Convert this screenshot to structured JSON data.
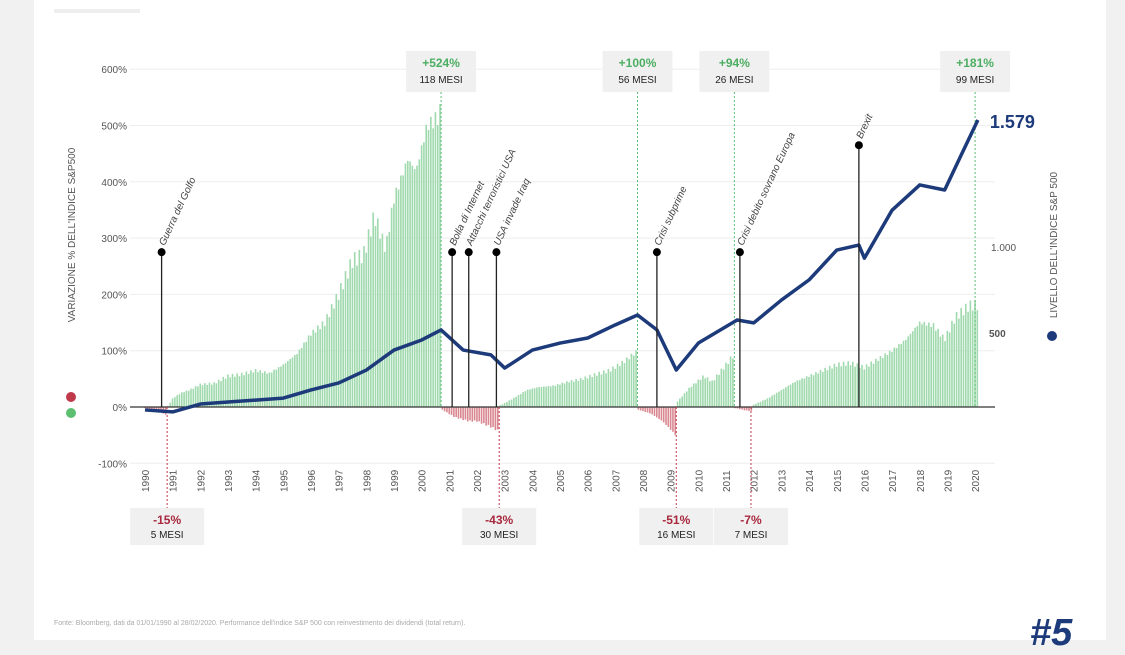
{
  "chart_data": {
    "type": "bar+line",
    "left_axis": {
      "title": "VARIAZIONE % DELL'INDICE S&P500",
      "ticks": [
        600,
        500,
        400,
        300,
        200,
        100,
        0,
        -100
      ],
      "tick_labels": [
        "600%",
        "500%",
        "400%",
        "300%",
        "200%",
        "100%",
        "0%",
        "-100%"
      ],
      "range": [
        -100,
        600
      ]
    },
    "right_axis": {
      "title": "LIVELLO DELL'INDICE S&P 500",
      "ticks": [
        500,
        1000
      ],
      "tick_labels": [
        "500",
        "1.000"
      ]
    },
    "x_axis": {
      "range": [
        1990,
        2020
      ],
      "tick_labels": [
        "1990",
        "1991",
        "1992",
        "1993",
        "1994",
        "1995",
        "1996",
        "1997",
        "1998",
        "1999",
        "2000",
        "2001",
        "2002",
        "2003",
        "2004",
        "2005",
        "2006",
        "2007",
        "2008",
        "2009",
        "2010",
        "2011",
        "2012",
        "2013",
        "2014",
        "2015",
        "2016",
        "2017",
        "2018",
        "2019",
        "2020"
      ]
    },
    "grid": true,
    "colors": {
      "bull": "#5cbf72",
      "bear": "#c0394b",
      "index_line": "#1d3a7a"
    },
    "bars": [
      [
        1990.0,
        -2
      ],
      [
        1990.4,
        -5
      ],
      [
        1990.8,
        -15
      ],
      [
        1990.85,
        2
      ],
      [
        1991.0,
        15
      ],
      [
        1991.3,
        25
      ],
      [
        1991.6,
        30
      ],
      [
        1992.0,
        40
      ],
      [
        1992.5,
        42
      ],
      [
        1993.0,
        55
      ],
      [
        1993.5,
        58
      ],
      [
        1994.0,
        65
      ],
      [
        1994.5,
        60
      ],
      [
        1995.0,
        75
      ],
      [
        1995.5,
        95
      ],
      [
        1996.0,
        130
      ],
      [
        1996.5,
        150
      ],
      [
        1997.0,
        200
      ],
      [
        1997.5,
        260
      ],
      [
        1997.9,
        270
      ],
      [
        1998.3,
        340
      ],
      [
        1998.7,
        280
      ],
      [
        1999.0,
        370
      ],
      [
        1999.5,
        440
      ],
      [
        1999.8,
        420
      ],
      [
        2000.2,
        500
      ],
      [
        2000.5,
        510
      ],
      [
        2000.7,
        524
      ],
      [
        2000.75,
        -5
      ],
      [
        2001.2,
        -18
      ],
      [
        2001.7,
        -25
      ],
      [
        2002.0,
        -25
      ],
      [
        2002.5,
        -35
      ],
      [
        2002.8,
        -43
      ],
      [
        2002.85,
        3
      ],
      [
        2003.3,
        15
      ],
      [
        2003.8,
        30
      ],
      [
        2004.2,
        35
      ],
      [
        2004.8,
        38
      ],
      [
        2005.3,
        45
      ],
      [
        2005.8,
        50
      ],
      [
        2006.3,
        58
      ],
      [
        2006.8,
        65
      ],
      [
        2007.3,
        80
      ],
      [
        2007.8,
        100
      ],
      [
        2007.85,
        -5
      ],
      [
        2008.3,
        -12
      ],
      [
        2008.7,
        -25
      ],
      [
        2009.0,
        -40
      ],
      [
        2009.2,
        -51
      ],
      [
        2009.25,
        10
      ],
      [
        2009.7,
        35
      ],
      [
        2010.2,
        55
      ],
      [
        2010.5,
        45
      ],
      [
        2011.0,
        75
      ],
      [
        2011.3,
        94
      ],
      [
        2011.35,
        -2
      ],
      [
        2011.7,
        -6
      ],
      [
        2011.9,
        -7
      ],
      [
        2011.95,
        3
      ],
      [
        2012.5,
        15
      ],
      [
        2013.0,
        30
      ],
      [
        2013.5,
        45
      ],
      [
        2014.0,
        55
      ],
      [
        2014.5,
        65
      ],
      [
        2015.0,
        75
      ],
      [
        2015.5,
        78
      ],
      [
        2016.0,
        70
      ],
      [
        2016.5,
        85
      ],
      [
        2017.0,
        100
      ],
      [
        2017.5,
        120
      ],
      [
        2018.0,
        150
      ],
      [
        2018.5,
        145
      ],
      [
        2018.9,
        120
      ],
      [
        2019.3,
        160
      ],
      [
        2019.8,
        180
      ],
      [
        2020.1,
        181
      ]
    ],
    "index_line": [
      [
        1990.0,
        257
      ],
      [
        1991.0,
        248
      ],
      [
        1992.0,
        284
      ],
      [
        1993.0,
        293
      ],
      [
        1994.0,
        302
      ],
      [
        1995.0,
        311
      ],
      [
        1996.0,
        348
      ],
      [
        1997.0,
        380
      ],
      [
        1998.0,
        439
      ],
      [
        1999.0,
        530
      ],
      [
        2000.0,
        576
      ],
      [
        2000.7,
        622
      ],
      [
        2001.5,
        530
      ],
      [
        2002.5,
        508
      ],
      [
        2003.0,
        448
      ],
      [
        2004.0,
        530
      ],
      [
        2005.0,
        562
      ],
      [
        2006.0,
        585
      ],
      [
        2007.0,
        645
      ],
      [
        2007.8,
        690
      ],
      [
        2008.5,
        622
      ],
      [
        2009.2,
        439
      ],
      [
        2010.0,
        562
      ],
      [
        2011.4,
        667
      ],
      [
        2012.0,
        654
      ],
      [
        2013.0,
        758
      ],
      [
        2014.0,
        850
      ],
      [
        2015.0,
        986
      ],
      [
        2015.8,
        1009
      ],
      [
        2016.0,
        949
      ],
      [
        2017.0,
        1168
      ],
      [
        2018.0,
        1283
      ],
      [
        2018.9,
        1260
      ],
      [
        2019.5,
        1420
      ],
      [
        2020.1,
        1579
      ]
    ],
    "last_value_label": "1.579",
    "events": [
      {
        "label": "Guerra del Golfo",
        "year": 1990.6,
        "pct": 275
      },
      {
        "label": "Bolla di Internet",
        "year": 2001.1,
        "pct": 275
      },
      {
        "label": "Attacchi terroristici USA",
        "year": 2001.7,
        "pct": 275
      },
      {
        "label": "USA invade Iraq",
        "year": 2002.7,
        "pct": 275
      },
      {
        "label": "Crisi subprime",
        "year": 2008.5,
        "pct": 275
      },
      {
        "label": "Crisi debito sovrano Europa",
        "year": 2011.5,
        "pct": 275
      },
      {
        "label": "Brexit",
        "year": 2015.8,
        "pct": 465
      }
    ],
    "bull_annotations": [
      {
        "pct": "+524%",
        "months": "118 MESI",
        "year": 2000.7
      },
      {
        "pct": "+100%",
        "months": "56 MESI",
        "year": 2007.8
      },
      {
        "pct": "+94%",
        "months": "26 MESI",
        "year": 2011.3
      },
      {
        "pct": "+181%",
        "months": "99 MESI",
        "year": 2020.0
      }
    ],
    "bear_annotations": [
      {
        "pct": "-15%",
        "months": "5 MESI",
        "year": 1990.8
      },
      {
        "pct": "-43%",
        "months": "30 MESI",
        "year": 2002.8
      },
      {
        "pct": "-51%",
        "months": "16 MESI",
        "year": 2009.2
      },
      {
        "pct": "-7%",
        "months": "7 MESI",
        "year": 2011.9
      }
    ]
  },
  "footer": "Fonte: Bloomberg, dati da 01/01/1990 al 28/02/2020. Performance dell'indice S&P 500 con reinvestimento dei dividendi (total return).",
  "logo": "#5"
}
